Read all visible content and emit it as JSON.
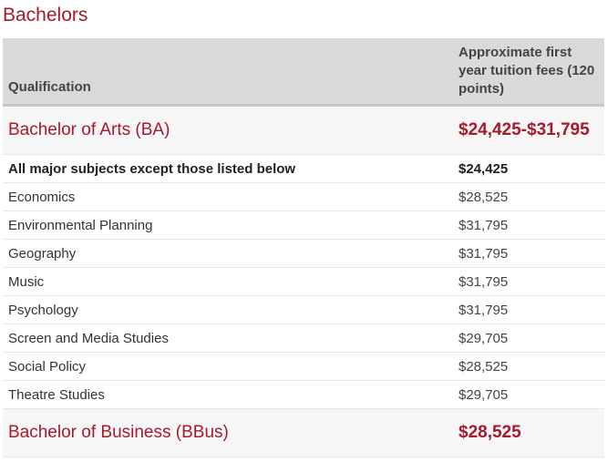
{
  "section_title": "Bachelors",
  "table": {
    "header": {
      "qualification": "Qualification",
      "fee": "Approximate first year tuition fees (120 points)"
    },
    "groups": [
      {
        "title": "Bachelor of Arts (BA)",
        "fee": "$24,425-$31,795",
        "rows": [
          {
            "subject": "All major subjects except those listed below",
            "fee": "$24,425"
          },
          {
            "subject": "Economics",
            "fee": "$28,525"
          },
          {
            "subject": "Environmental Planning",
            "fee": "$31,795"
          },
          {
            "subject": "Geography",
            "fee": "$31,795"
          },
          {
            "subject": "Music",
            "fee": "$31,795"
          },
          {
            "subject": "Psychology",
            "fee": "$31,795"
          },
          {
            "subject": "Screen and Media Studies",
            "fee": "$29,705"
          },
          {
            "subject": "Social Policy",
            "fee": "$28,525"
          },
          {
            "subject": "Theatre Studies",
            "fee": "$29,705"
          }
        ]
      },
      {
        "title": "Bachelor of Business (BBus)",
        "fee": "$28,525",
        "rows": []
      }
    ]
  }
}
